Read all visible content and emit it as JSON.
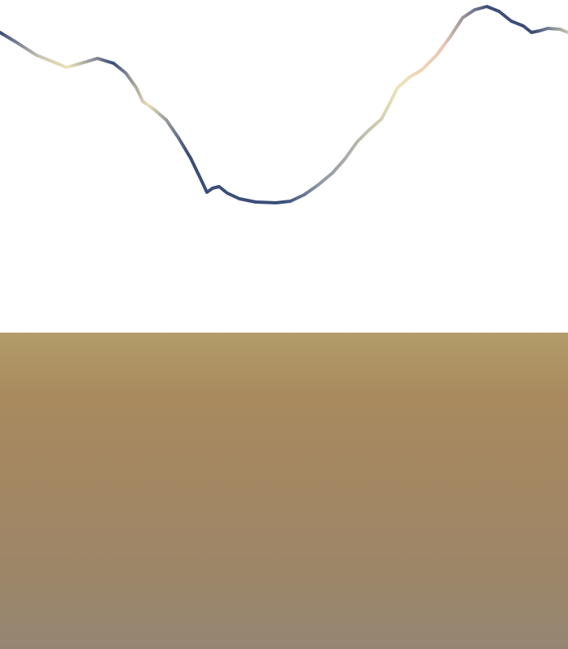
{
  "scene": {
    "view": "terrain-horizon",
    "colors": {
      "sky": "#ffffff",
      "ridge_shadow": "#3b4d78",
      "ridge_highlight": "#ede3b8",
      "ridge_warm": "#e8c8b4",
      "ground_top": "#b39c69",
      "ground_mid": "#a38763",
      "ground_bottom": "#958673"
    }
  }
}
